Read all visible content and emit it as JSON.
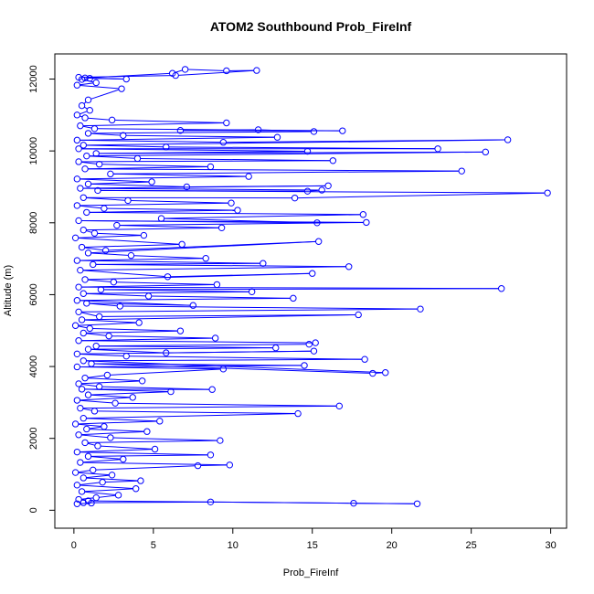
{
  "chart_data": {
    "type": "line",
    "title": "ATOM2 Southbound Prob_FireInf",
    "xlabel": "Prob_FireInf",
    "ylabel": "Altitude (m)",
    "xlim": [
      -1.2,
      31.0
    ],
    "ylim": [
      -500,
      12700
    ],
    "xticks": [
      0,
      5,
      10,
      15,
      20,
      25,
      30
    ],
    "yticks": [
      0,
      2000,
      4000,
      6000,
      8000,
      10000,
      12000
    ],
    "color": "#0000ff",
    "marker": "open-circle",
    "series": [
      {
        "values": [
          [
            0.2,
            180
          ],
          [
            1.1,
            200
          ],
          [
            0.6,
            210
          ],
          [
            8.6,
            230
          ],
          [
            17.6,
            195
          ],
          [
            21.6,
            180
          ],
          [
            0.9,
            260
          ],
          [
            0.3,
            300
          ],
          [
            1.4,
            350
          ],
          [
            2.8,
            420
          ],
          [
            0.5,
            520
          ],
          [
            3.9,
            600
          ],
          [
            0.2,
            700
          ],
          [
            1.8,
            780
          ],
          [
            4.2,
            820
          ],
          [
            0.6,
            900
          ],
          [
            2.4,
            980
          ],
          [
            0.1,
            1050
          ],
          [
            1.2,
            1120
          ],
          [
            7.8,
            1240
          ],
          [
            9.8,
            1260
          ],
          [
            0.4,
            1330
          ],
          [
            3.1,
            1420
          ],
          [
            0.9,
            1500
          ],
          [
            8.6,
            1540
          ],
          [
            0.2,
            1620
          ],
          [
            5.1,
            1700
          ],
          [
            1.5,
            1790
          ],
          [
            0.7,
            1880
          ],
          [
            9.2,
            1940
          ],
          [
            2.3,
            2020
          ],
          [
            0.3,
            2100
          ],
          [
            4.6,
            2190
          ],
          [
            0.8,
            2260
          ],
          [
            1.9,
            2330
          ],
          [
            0.1,
            2400
          ],
          [
            5.4,
            2480
          ],
          [
            0.6,
            2560
          ],
          [
            14.1,
            2690
          ],
          [
            1.3,
            2760
          ],
          [
            0.4,
            2840
          ],
          [
            16.7,
            2900
          ],
          [
            2.6,
            2980
          ],
          [
            0.2,
            3060
          ],
          [
            3.7,
            3140
          ],
          [
            0.9,
            3210
          ],
          [
            6.1,
            3300
          ],
          [
            0.5,
            3370
          ],
          [
            8.7,
            3360
          ],
          [
            1.6,
            3440
          ],
          [
            0.3,
            3520
          ],
          [
            4.3,
            3600
          ],
          [
            0.7,
            3680
          ],
          [
            2.1,
            3760
          ],
          [
            9.4,
            3930
          ],
          [
            0.2,
            3990
          ],
          [
            14.5,
            4030
          ],
          [
            1.1,
            4080
          ],
          [
            18.8,
            3810
          ],
          [
            19.6,
            3830
          ],
          [
            0.6,
            4160
          ],
          [
            18.3,
            4200
          ],
          [
            3.3,
            4290
          ],
          [
            0.2,
            4350
          ],
          [
            15.1,
            4430
          ],
          [
            5.8,
            4380
          ],
          [
            0.9,
            4480
          ],
          [
            12.7,
            4520
          ],
          [
            1.4,
            4570
          ],
          [
            14.8,
            4620
          ],
          [
            15.2,
            4660
          ],
          [
            0.3,
            4720
          ],
          [
            8.9,
            4790
          ],
          [
            2.2,
            4850
          ],
          [
            0.6,
            4930
          ],
          [
            6.7,
            4990
          ],
          [
            1.0,
            5060
          ],
          [
            0.1,
            5140
          ],
          [
            4.1,
            5220
          ],
          [
            0.5,
            5300
          ],
          [
            17.9,
            5440
          ],
          [
            1.6,
            5390
          ],
          [
            0.3,
            5520
          ],
          [
            21.8,
            5600
          ],
          [
            2.9,
            5680
          ],
          [
            0.8,
            5760
          ],
          [
            7.5,
            5700
          ],
          [
            0.2,
            5840
          ],
          [
            13.8,
            5900
          ],
          [
            4.7,
            5960
          ],
          [
            0.6,
            6030
          ],
          [
            11.2,
            6080
          ],
          [
            1.7,
            6140
          ],
          [
            26.9,
            6170
          ],
          [
            0.3,
            6210
          ],
          [
            9.0,
            6280
          ],
          [
            2.5,
            6350
          ],
          [
            0.7,
            6420
          ],
          [
            15.0,
            6590
          ],
          [
            5.9,
            6500
          ],
          [
            0.4,
            6680
          ],
          [
            17.3,
            6780
          ],
          [
            1.2,
            6840
          ],
          [
            11.9,
            6870
          ],
          [
            0.2,
            6950
          ],
          [
            8.3,
            7010
          ],
          [
            3.6,
            7090
          ],
          [
            0.9,
            7160
          ],
          [
            15.4,
            7480
          ],
          [
            2.0,
            7230
          ],
          [
            0.5,
            7320
          ],
          [
            6.8,
            7400
          ],
          [
            0.1,
            7580
          ],
          [
            4.4,
            7650
          ],
          [
            1.3,
            7710
          ],
          [
            0.6,
            7800
          ],
          [
            9.3,
            7860
          ],
          [
            2.7,
            7930
          ],
          [
            18.4,
            8010
          ],
          [
            0.3,
            8060
          ],
          [
            15.3,
            8000
          ],
          [
            5.5,
            8120
          ],
          [
            18.2,
            8230
          ],
          [
            0.8,
            8290
          ],
          [
            10.3,
            8350
          ],
          [
            1.9,
            8400
          ],
          [
            0.2,
            8480
          ],
          [
            9.9,
            8550
          ],
          [
            3.4,
            8620
          ],
          [
            0.6,
            8700
          ],
          [
            13.9,
            8690
          ],
          [
            29.8,
            8830
          ],
          [
            1.5,
            8900
          ],
          [
            14.7,
            8880
          ],
          [
            15.6,
            8910
          ],
          [
            0.4,
            8960
          ],
          [
            16.0,
            9030
          ],
          [
            7.1,
            9000
          ],
          [
            0.9,
            9080
          ],
          [
            4.9,
            9140
          ],
          [
            0.2,
            9220
          ],
          [
            11.0,
            9290
          ],
          [
            2.3,
            9360
          ],
          [
            24.4,
            9440
          ],
          [
            0.7,
            9500
          ],
          [
            8.6,
            9560
          ],
          [
            1.6,
            9630
          ],
          [
            0.3,
            9700
          ],
          [
            16.3,
            9730
          ],
          [
            4.0,
            9790
          ],
          [
            0.8,
            9860
          ],
          [
            25.9,
            9970
          ],
          [
            1.4,
            9930
          ],
          [
            14.7,
            9990
          ],
          [
            0.3,
            10060
          ],
          [
            22.9,
            10060
          ],
          [
            5.8,
            10110
          ],
          [
            0.6,
            10160
          ],
          [
            27.3,
            10310
          ],
          [
            9.4,
            10240
          ],
          [
            0.2,
            10300
          ],
          [
            12.8,
            10380
          ],
          [
            3.1,
            10430
          ],
          [
            0.9,
            10490
          ],
          [
            15.1,
            10540
          ],
          [
            11.6,
            10590
          ],
          [
            6.7,
            10570
          ],
          [
            16.9,
            10560
          ],
          [
            1.3,
            10620
          ],
          [
            0.4,
            10700
          ],
          [
            9.6,
            10780
          ],
          [
            2.4,
            10860
          ],
          [
            0.7,
            10920
          ],
          [
            0.2,
            11000
          ],
          [
            1.0,
            11130
          ],
          [
            0.5,
            11260
          ],
          [
            0.9,
            11420
          ],
          [
            3.0,
            11730
          ],
          [
            0.2,
            11830
          ],
          [
            1.4,
            11900
          ],
          [
            0.5,
            11990
          ],
          [
            1.0,
            12020
          ],
          [
            3.3,
            12000
          ],
          [
            0.7,
            12030
          ],
          [
            6.2,
            12160
          ],
          [
            7.0,
            12270
          ],
          [
            9.6,
            12230
          ],
          [
            11.5,
            12240
          ],
          [
            6.4,
            12100
          ],
          [
            0.3,
            12050
          ]
        ]
      }
    ]
  }
}
